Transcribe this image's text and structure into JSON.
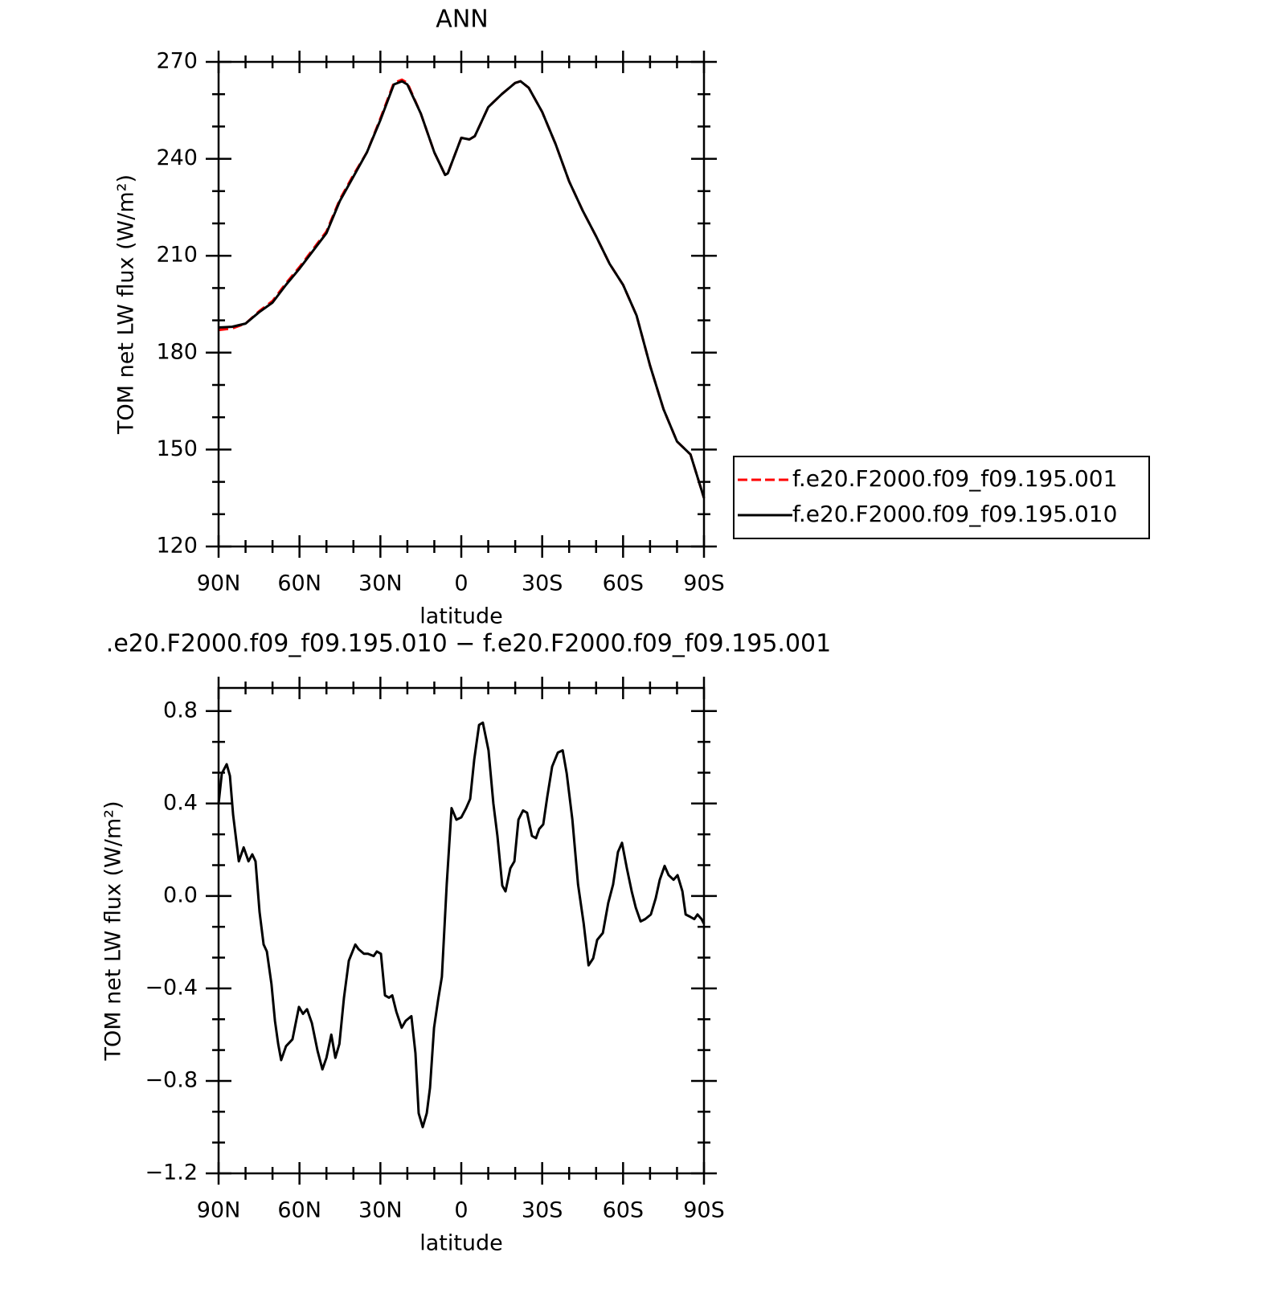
{
  "chart_data": [
    {
      "type": "line",
      "title": "ANN",
      "xlabel": "latitude",
      "ylabel": "TOM net LW flux (W/m²)",
      "x": [
        90,
        85,
        80,
        75,
        70,
        65,
        60,
        55,
        50,
        45,
        40,
        35,
        30,
        25,
        22,
        20,
        15,
        10,
        6,
        5,
        0,
        -3,
        -5,
        -10,
        -15,
        -20,
        -22,
        -25,
        -30,
        -35,
        -40,
        -45,
        -50,
        -55,
        -60,
        -65,
        -70,
        -75,
        -80,
        -85,
        -90
      ],
      "series": [
        {
          "name": "f.e20.F2000.f09_f09.195.001",
          "color": "#ff0000",
          "linestyle": "dashed",
          "values": [
            187,
            187.5,
            189,
            192.8,
            196,
            201.5,
            206.5,
            212,
            217.5,
            227.5,
            235,
            242,
            252.5,
            263.5,
            264.5,
            263.5,
            254,
            242,
            235,
            235.5,
            246.5,
            246,
            247,
            256,
            260,
            263.5,
            264,
            262,
            254.5,
            244.5,
            233,
            224,
            216,
            207.5,
            201,
            191.5,
            176,
            162.5,
            152.5,
            148.5,
            135
          ]
        },
        {
          "name": "f.e20.F2000.f09_f09.195.010",
          "color": "#000000",
          "linestyle": "solid",
          "values": [
            187.8,
            188,
            189,
            192.5,
            195.5,
            201,
            206,
            211.5,
            217,
            227,
            234.5,
            242,
            252,
            263,
            264,
            263,
            254,
            242,
            235,
            235.5,
            246.5,
            246,
            247,
            256,
            260,
            263.5,
            264,
            262,
            254.5,
            244.5,
            233,
            224,
            216,
            207.5,
            201,
            191.5,
            176,
            162.5,
            152.5,
            148.5,
            135
          ]
        }
      ],
      "xlim": [
        90,
        -90
      ],
      "xticks": [
        {
          "value": 90,
          "label": "90N"
        },
        {
          "value": 60,
          "label": "60N"
        },
        {
          "value": 30,
          "label": "30N"
        },
        0,
        {
          "value": -30,
          "label": "30S"
        },
        {
          "value": -60,
          "label": "60S"
        },
        {
          "value": -90,
          "label": "90S"
        }
      ],
      "ylim": [
        120,
        270
      ],
      "yticks": [
        120,
        150,
        180,
        210,
        240,
        270
      ],
      "legend": "right"
    },
    {
      "type": "line",
      "title": ".e20.F2000.f09_f09.195.010 − f.e20.F2000.f09_f09.195.001",
      "xlabel": "latitude",
      "ylabel": "TOM net LW flux (W/m²)",
      "x": [
        90,
        88.8,
        87,
        85.8,
        84.6,
        82.5,
        80.7,
        78.9,
        77.5,
        76.3,
        74.8,
        73.3,
        72.1,
        70.4,
        69.1,
        67.9,
        66.8,
        65,
        62.6,
        60.2,
        58.7,
        57.2,
        55.4,
        53.3,
        51.5,
        50,
        48.2,
        46.7,
        45.2,
        43.5,
        41.7,
        39.3,
        38.1,
        36.1,
        34.6,
        32.5,
        31.3,
        29.8,
        28.3,
        26.8,
        25.6,
        24.1,
        22.1,
        20.6,
        18.5,
        17,
        15.8,
        14.3,
        12.8,
        11.6,
        10.1,
        8.6,
        7.2,
        5.4,
        3.6,
        1.8,
        0,
        -1.8,
        -3.3,
        -4.8,
        -6.6,
        -8,
        -10.1,
        -11.9,
        -13.4,
        -15.2,
        -16.4,
        -18.2,
        -19.7,
        -21.2,
        -22.9,
        -24.4,
        -26.2,
        -27.7,
        -28.9,
        -30.4,
        -31.9,
        -33.7,
        -35.8,
        -37.6,
        -39.1,
        -41.2,
        -43.3,
        -45.4,
        -47.2,
        -48.9,
        -50.4,
        -52.5,
        -54.5,
        -56.3,
        -58.1,
        -59.6,
        -61.4,
        -63.2,
        -64.7,
        -66.5,
        -68.2,
        -70.3,
        -72.1,
        -73.6,
        -75.4,
        -76.9,
        -78.7,
        -80.2,
        -82,
        -83.2,
        -84.9,
        -86.4,
        -87.6,
        -89.1,
        -90
      ],
      "series": [
        {
          "color": "#000000",
          "linestyle": "solid",
          "values": [
            0.4,
            0.53,
            0.57,
            0.52,
            0.35,
            0.15,
            0.21,
            0.15,
            0.18,
            0.15,
            -0.07,
            -0.21,
            -0.24,
            -0.38,
            -0.54,
            -0.64,
            -0.71,
            -0.65,
            -0.62,
            -0.48,
            -0.51,
            -0.49,
            -0.55,
            -0.67,
            -0.75,
            -0.7,
            -0.6,
            -0.7,
            -0.64,
            -0.44,
            -0.28,
            -0.21,
            -0.23,
            -0.25,
            -0.25,
            -0.26,
            -0.24,
            -0.25,
            -0.43,
            -0.44,
            -0.43,
            -0.5,
            -0.57,
            -0.54,
            -0.52,
            -0.68,
            -0.94,
            -1,
            -0.94,
            -0.83,
            -0.57,
            -0.45,
            -0.35,
            0.05,
            0.38,
            0.33,
            0.34,
            0.38,
            0.42,
            0.59,
            0.74,
            0.75,
            0.63,
            0.4,
            0.26,
            0.045,
            0.02,
            0.12,
            0.15,
            0.33,
            0.37,
            0.36,
            0.26,
            0.25,
            0.29,
            0.31,
            0.43,
            0.56,
            0.62,
            0.63,
            0.53,
            0.33,
            0.05,
            -0.12,
            -0.3,
            -0.27,
            -0.19,
            -0.16,
            -0.03,
            0.05,
            0.19,
            0.23,
            0.12,
            0.02,
            -0.05,
            -0.11,
            -0.1,
            -0.08,
            -0.01,
            0.07,
            0.13,
            0.09,
            0.07,
            0.09,
            0.02,
            -0.08,
            -0.09,
            -0.1,
            -0.08,
            -0.1,
            -0.12
          ]
        }
      ],
      "xlim": [
        90,
        -90
      ],
      "xticks": [
        {
          "value": 90,
          "label": "90N"
        },
        {
          "value": 60,
          "label": "60N"
        },
        {
          "value": 30,
          "label": "30N"
        },
        0,
        {
          "value": -30,
          "label": "30S"
        },
        {
          "value": -60,
          "label": "60S"
        },
        {
          "value": -90,
          "label": "90S"
        }
      ],
      "ylim": [
        -1.2,
        0.9
      ],
      "yticks": [
        {
          "value": -1.2,
          "label": "−1.2"
        },
        {
          "value": -0.8,
          "label": "−0.8"
        },
        {
          "value": -0.4,
          "label": "−0.4"
        },
        {
          "value": 0,
          "label": "0.0"
        },
        {
          "value": 0.4,
          "label": "0.4"
        },
        {
          "value": 0.8,
          "label": "0.8"
        }
      ]
    }
  ]
}
